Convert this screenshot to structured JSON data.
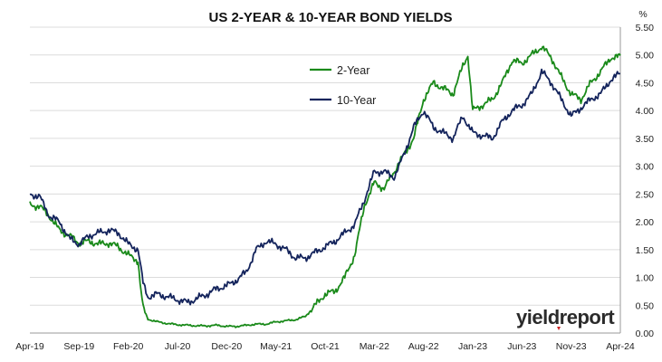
{
  "chart_data": {
    "type": "line",
    "title": "US 2-YEAR & 10-YEAR BOND YIELDS",
    "y_unit_label": "%",
    "ylim": [
      0,
      5.5
    ],
    "y_ticks": [
      "0.00",
      "0.50",
      "1.00",
      "1.50",
      "2.00",
      "2.50",
      "3.00",
      "3.50",
      "4.00",
      "4.50",
      "5.00",
      "5.50"
    ],
    "x_tick_labels": [
      "Apr-19",
      "Sep-19",
      "Feb-20",
      "Jul-20",
      "Dec-20",
      "May-21",
      "Oct-21",
      "Mar-22",
      "Aug-22",
      "Jan-23",
      "Jun-23",
      "Nov-23",
      "Apr-24"
    ],
    "x_start": "2019-04",
    "grid": "horizontal",
    "legend_position": "top-center",
    "series": [
      {
        "name": "2-Year",
        "color": "#1a8a1a",
        "values": [
          [
            0,
            2.3
          ],
          [
            1,
            2.28
          ],
          [
            2,
            2.1
          ],
          [
            3,
            1.85
          ],
          [
            4,
            1.75
          ],
          [
            5,
            1.62
          ],
          [
            6,
            1.65
          ],
          [
            7,
            1.6
          ],
          [
            8,
            1.62
          ],
          [
            9,
            1.55
          ],
          [
            10,
            1.4
          ],
          [
            11,
            1.3
          ],
          [
            11.2,
            0.9
          ],
          [
            11.5,
            0.45
          ],
          [
            12,
            0.25
          ],
          [
            13,
            0.2
          ],
          [
            14,
            0.17
          ],
          [
            15,
            0.15
          ],
          [
            16,
            0.14
          ],
          [
            17,
            0.13
          ],
          [
            18,
            0.13
          ],
          [
            19,
            0.14
          ],
          [
            20,
            0.12
          ],
          [
            21,
            0.12
          ],
          [
            22,
            0.14
          ],
          [
            23,
            0.16
          ],
          [
            24,
            0.16
          ],
          [
            25,
            0.2
          ],
          [
            26,
            0.22
          ],
          [
            27,
            0.24
          ],
          [
            28,
            0.3
          ],
          [
            29,
            0.5
          ],
          [
            30,
            0.7
          ],
          [
            31,
            0.75
          ],
          [
            32,
            1.0
          ],
          [
            33,
            1.4
          ],
          [
            34,
            2.3
          ],
          [
            35,
            2.7
          ],
          [
            36,
            2.6
          ],
          [
            37,
            2.9
          ],
          [
            38,
            3.2
          ],
          [
            39,
            3.5
          ],
          [
            40,
            4.2
          ],
          [
            41,
            4.5
          ],
          [
            42,
            4.4
          ],
          [
            43,
            4.3
          ],
          [
            44,
            4.8
          ],
          [
            44.5,
            5.0
          ],
          [
            45,
            4.0
          ],
          [
            46,
            4.1
          ],
          [
            47,
            4.2
          ],
          [
            48,
            4.5
          ],
          [
            49,
            4.9
          ],
          [
            50,
            4.85
          ],
          [
            51,
            5.0
          ],
          [
            52,
            5.15
          ],
          [
            53,
            4.95
          ],
          [
            54,
            4.6
          ],
          [
            55,
            4.3
          ],
          [
            56,
            4.2
          ],
          [
            57,
            4.5
          ],
          [
            58,
            4.7
          ],
          [
            59,
            4.95
          ],
          [
            60,
            4.97
          ]
        ]
      },
      {
        "name": "10-Year",
        "color": "#14245c",
        "values": [
          [
            0,
            2.5
          ],
          [
            1,
            2.45
          ],
          [
            2,
            2.1
          ],
          [
            3,
            2.0
          ],
          [
            4,
            1.7
          ],
          [
            5,
            1.6
          ],
          [
            6,
            1.75
          ],
          [
            7,
            1.8
          ],
          [
            8,
            1.85
          ],
          [
            9,
            1.8
          ],
          [
            10,
            1.6
          ],
          [
            11,
            1.5
          ],
          [
            11.5,
            0.9
          ],
          [
            12,
            0.65
          ],
          [
            13,
            0.7
          ],
          [
            14,
            0.65
          ],
          [
            15,
            0.6
          ],
          [
            16,
            0.55
          ],
          [
            17,
            0.62
          ],
          [
            18,
            0.7
          ],
          [
            19,
            0.8
          ],
          [
            20,
            0.85
          ],
          [
            21,
            0.95
          ],
          [
            22,
            1.1
          ],
          [
            23,
            1.5
          ],
          [
            24,
            1.65
          ],
          [
            25,
            1.6
          ],
          [
            26,
            1.5
          ],
          [
            27,
            1.35
          ],
          [
            28,
            1.35
          ],
          [
            29,
            1.45
          ],
          [
            30,
            1.55
          ],
          [
            31,
            1.65
          ],
          [
            32,
            1.8
          ],
          [
            33,
            1.95
          ],
          [
            34,
            2.4
          ],
          [
            35,
            2.9
          ],
          [
            36,
            2.9
          ],
          [
            37,
            2.8
          ],
          [
            38,
            3.2
          ],
          [
            39,
            3.7
          ],
          [
            40,
            4.0
          ],
          [
            41,
            3.7
          ],
          [
            42,
            3.6
          ],
          [
            43,
            3.5
          ],
          [
            44,
            3.9
          ],
          [
            45,
            3.6
          ],
          [
            46,
            3.55
          ],
          [
            47,
            3.5
          ],
          [
            48,
            3.8
          ],
          [
            49,
            4.0
          ],
          [
            50,
            4.1
          ],
          [
            51,
            4.3
          ],
          [
            52,
            4.7
          ],
          [
            53,
            4.5
          ],
          [
            54,
            4.2
          ],
          [
            55,
            3.9
          ],
          [
            56,
            4.05
          ],
          [
            57,
            4.2
          ],
          [
            58,
            4.3
          ],
          [
            59,
            4.55
          ],
          [
            60,
            4.67
          ]
        ]
      }
    ]
  },
  "watermark": {
    "text_yield": "yield",
    "text_report": "report",
    "accent_color": "#cc2222"
  }
}
